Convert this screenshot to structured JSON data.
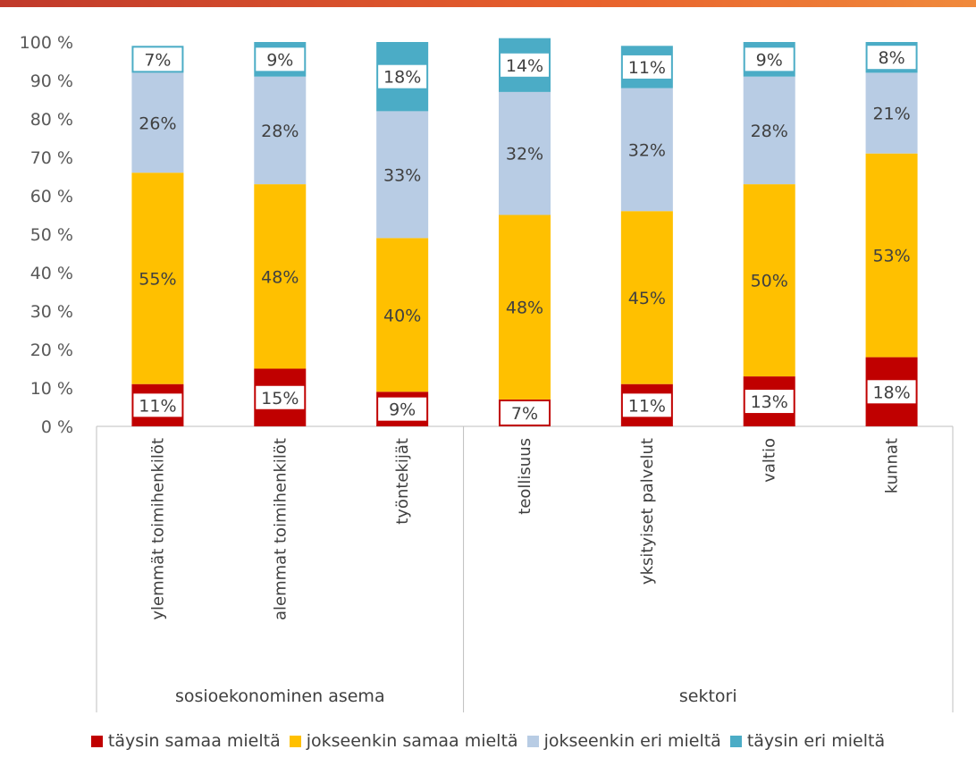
{
  "chart_data": {
    "type": "bar",
    "stacked": true,
    "ylim": [
      0,
      100
    ],
    "yticks": [
      "0 %",
      "10 %",
      "20 %",
      "30 %",
      "40 %",
      "50 %",
      "60 %",
      "70 %",
      "80 %",
      "90 %",
      "100 %"
    ],
    "categories": [
      "ylemmät toimihenkilöt",
      "alemmat toimihenkilöt",
      "työntekijät",
      "teollisuus",
      "yksityiset palvelut",
      "valtio",
      "kunnat"
    ],
    "groups": [
      {
        "label": "sosioekonominen asema",
        "categories": [
          0,
          1,
          2
        ]
      },
      {
        "label": "sektori",
        "categories": [
          3,
          4,
          5,
          6
        ]
      }
    ],
    "series": [
      {
        "name": "täysin samaa mieltä",
        "color": "#C00000",
        "values": [
          11,
          15,
          9,
          7,
          11,
          13,
          18
        ],
        "labels": [
          "11%",
          "15%",
          "9%",
          "7%",
          "11%",
          "13%",
          "18%"
        ]
      },
      {
        "name": "jokseenkin samaa mieltä",
        "color": "#FFC000",
        "values": [
          55,
          48,
          40,
          48,
          45,
          50,
          53
        ],
        "labels": [
          "55%",
          "48%",
          "40%",
          "48%",
          "45%",
          "50%",
          "53%"
        ]
      },
      {
        "name": "jokseenkin eri mieltä",
        "color": "#B8CCE4",
        "values": [
          26,
          28,
          33,
          32,
          32,
          28,
          21
        ],
        "labels": [
          "26%",
          "28%",
          "33%",
          "32%",
          "32%",
          "28%",
          "21%"
        ]
      },
      {
        "name": "täysin eri mieltä",
        "color": "#4BACC6",
        "values": [
          7,
          9,
          18,
          14,
          11,
          9,
          8
        ],
        "labels": [
          "7%",
          "9%",
          "18%",
          "14%",
          "11%",
          "9%",
          "8%"
        ]
      }
    ],
    "grid": false,
    "legend_position": "bottom"
  }
}
